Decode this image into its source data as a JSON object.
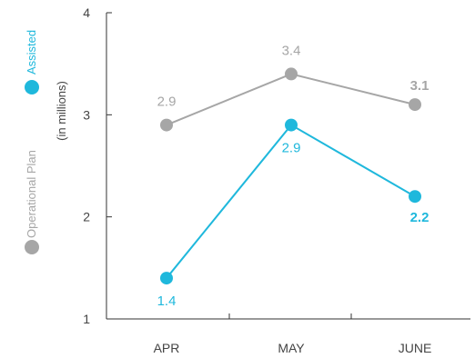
{
  "chart_data": {
    "type": "line",
    "categories": [
      "APR",
      "MAY",
      "JUNE"
    ],
    "ylabel": "(in millions)",
    "ylim": [
      1,
      4
    ],
    "yticks": [
      1,
      2,
      3,
      4
    ],
    "grid": false,
    "legend_position": "left, vertical",
    "series": [
      {
        "name": "Operational Plan",
        "color": "#a6a6a6",
        "values": [
          2.9,
          3.4,
          3.1
        ],
        "labels": [
          "2.9",
          "3.4",
          "3.1"
        ],
        "label_position": "above",
        "bold_last": true
      },
      {
        "name": "Assisted",
        "color": "#1fb8dc",
        "values": [
          1.4,
          2.9,
          2.2
        ],
        "labels": [
          "1.4",
          "2.9",
          "2.2"
        ],
        "label_position": "below",
        "bold_last": true
      }
    ]
  }
}
